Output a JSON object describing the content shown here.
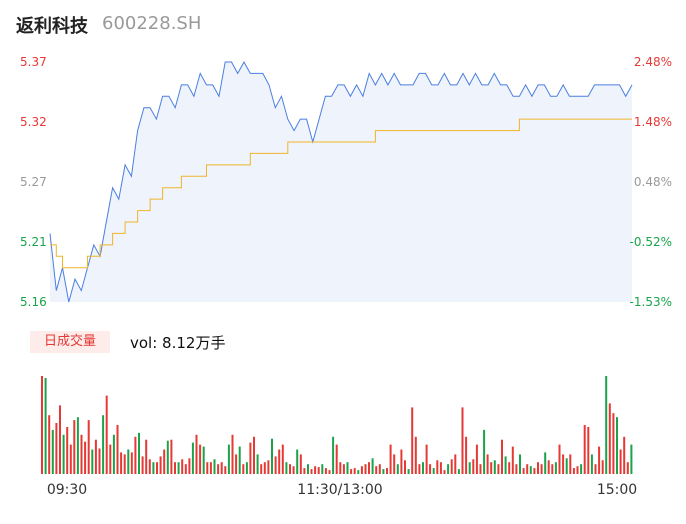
{
  "header": {
    "name": "返利科技",
    "code": "600228.SH"
  },
  "volume_panel": {
    "badge": "日成交量",
    "label": "vol: 8.12万手"
  },
  "colors": {
    "price": "#4a7fe0",
    "avg": "#f0b429",
    "up": "#e53935",
    "down": "#1aa34a",
    "neutral": "#999999"
  },
  "chart_data": {
    "type": "line",
    "y_left_ticks": [
      "5.37",
      "5.32",
      "5.27",
      "5.21",
      "5.16"
    ],
    "y_right_ticks": [
      "2.48%",
      "1.48%",
      "0.48%",
      "-0.52%",
      "-1.53%"
    ],
    "x_ticks": [
      "09:30",
      "11:30/13:00",
      "15:00"
    ],
    "ylim": [
      5.16,
      5.37
    ],
    "series": [
      {
        "name": "price",
        "values": [
          5.22,
          5.17,
          5.19,
          5.16,
          5.18,
          5.17,
          5.19,
          5.21,
          5.2,
          5.23,
          5.26,
          5.25,
          5.28,
          5.27,
          5.31,
          5.33,
          5.33,
          5.32,
          5.34,
          5.34,
          5.33,
          5.35,
          5.35,
          5.34,
          5.36,
          5.35,
          5.35,
          5.34,
          5.37,
          5.37,
          5.36,
          5.37,
          5.36,
          5.36,
          5.36,
          5.35,
          5.33,
          5.34,
          5.32,
          5.31,
          5.32,
          5.32,
          5.3,
          5.32,
          5.34,
          5.34,
          5.35,
          5.35,
          5.34,
          5.35,
          5.34,
          5.36,
          5.35,
          5.36,
          5.35,
          5.36,
          5.35,
          5.35,
          5.35,
          5.36,
          5.36,
          5.35,
          5.35,
          5.36,
          5.35,
          5.35,
          5.36,
          5.35,
          5.36,
          5.35,
          5.35,
          5.36,
          5.35,
          5.35,
          5.34,
          5.34,
          5.35,
          5.34,
          5.35,
          5.35,
          5.34,
          5.34,
          5.35,
          5.34,
          5.34,
          5.34,
          5.34,
          5.35,
          5.35,
          5.35,
          5.35,
          5.35,
          5.34,
          5.35
        ]
      },
      {
        "name": "average",
        "values": [
          5.21,
          5.2,
          5.19,
          5.19,
          5.19,
          5.19,
          5.2,
          5.2,
          5.21,
          5.21,
          5.22,
          5.22,
          5.23,
          5.23,
          5.24,
          5.24,
          5.25,
          5.25,
          5.26,
          5.26,
          5.26,
          5.27,
          5.27,
          5.27,
          5.27,
          5.28,
          5.28,
          5.28,
          5.28,
          5.28,
          5.28,
          5.28,
          5.29,
          5.29,
          5.29,
          5.29,
          5.29,
          5.29,
          5.3,
          5.3,
          5.3,
          5.3,
          5.3,
          5.3,
          5.3,
          5.3,
          5.3,
          5.3,
          5.3,
          5.3,
          5.3,
          5.3,
          5.31,
          5.31,
          5.31,
          5.31,
          5.31,
          5.31,
          5.31,
          5.31,
          5.31,
          5.31,
          5.31,
          5.31,
          5.31,
          5.31,
          5.31,
          5.31,
          5.31,
          5.31,
          5.31,
          5.31,
          5.31,
          5.31,
          5.31,
          5.32,
          5.32,
          5.32,
          5.32,
          5.32,
          5.32,
          5.32,
          5.32,
          5.32,
          5.32,
          5.32,
          5.32,
          5.32,
          5.32,
          5.32,
          5.32,
          5.32,
          5.32,
          5.32
        ]
      }
    ],
    "volume": [
      100,
      98,
      60,
      45,
      52,
      70,
      40,
      48,
      30,
      55,
      58,
      40,
      33,
      55,
      25,
      35,
      26,
      60,
      80,
      30,
      40,
      50,
      22,
      20,
      25,
      22,
      38,
      42,
      18,
      35,
      15,
      12,
      12,
      18,
      25,
      34,
      35,
      12,
      12,
      15,
      10,
      16,
      32,
      40,
      30,
      28,
      12,
      12,
      15,
      10,
      12,
      8,
      30,
      40,
      20,
      28,
      10,
      12,
      32,
      38,
      20,
      10,
      12,
      14,
      36,
      18,
      25,
      30,
      12,
      10,
      8,
      25,
      20,
      6,
      10,
      5,
      8,
      7,
      10,
      6,
      4,
      38,
      30,
      12,
      10,
      12,
      5,
      6,
      4,
      8,
      10,
      12,
      16,
      8,
      10,
      5,
      6,
      30,
      20,
      10,
      25,
      14,
      5,
      68,
      38,
      10,
      12,
      30,
      10,
      6,
      14,
      12,
      4,
      10,
      15,
      20,
      5,
      68,
      38,
      12,
      15,
      30,
      10,
      45,
      20,
      12,
      14,
      10,
      35,
      18,
      12,
      28,
      10,
      20,
      6,
      10,
      8,
      6,
      12,
      10,
      22,
      14,
      10,
      12,
      30,
      20,
      16,
      20,
      6,
      8,
      10,
      50,
      48,
      20,
      10,
      28,
      14,
      100,
      72,
      62,
      58,
      25,
      38,
      12,
      30
    ],
    "volume_colors": "rgrgrrgrrrgrrrgrrgrrgrrrgrrgrrrgrrrgrrgrrrgrrgrrgrrrgrrgrgrrgrrrgrrrgrrgrrgrrrgrrgrrrgrrgrrrgrrgrrrgrrgrrrgrrgrrrgrrgrrgrrrgrrgrrgrrrgrrgrrrgrrgrrgrrrgrrgrrrgrrgrrrgr"
  }
}
